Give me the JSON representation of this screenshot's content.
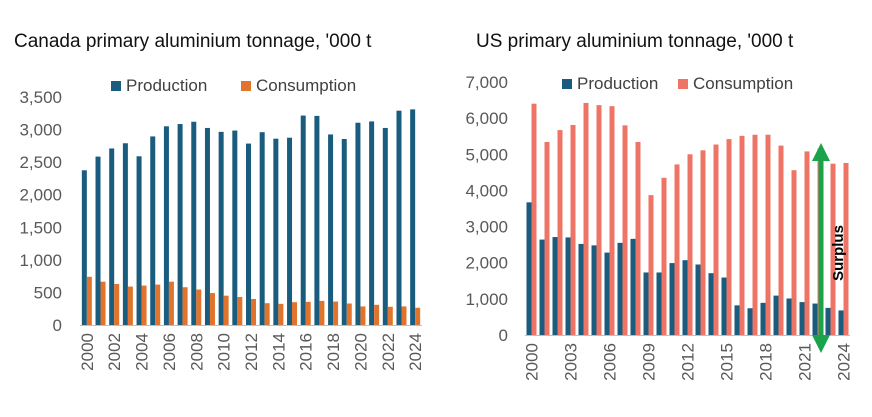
{
  "colors": {
    "production": "#1a5c7e",
    "consumption_canada": "#e0742d",
    "consumption_us": "#ee7466",
    "axis": "#bfbfbf",
    "surplus_arrow": "#1aa34a"
  },
  "chart_data": [
    {
      "type": "bar",
      "title": "Canada primary aluminium tonnage, '000 t",
      "categories": [
        "2000",
        "2001",
        "2002",
        "2003",
        "2004",
        "2005",
        "2006",
        "2007",
        "2008",
        "2009",
        "2010",
        "2011",
        "2012",
        "2013",
        "2014",
        "2015",
        "2016",
        "2017",
        "2018",
        "2019",
        "2020",
        "2021",
        "2022",
        "2023",
        "2024"
      ],
      "tick_labels": [
        "2000",
        "2002",
        "2004",
        "2006",
        "2008",
        "2010",
        "2012",
        "2014",
        "2016",
        "2018",
        "2020",
        "2022",
        "2024"
      ],
      "series": [
        {
          "name": "Production",
          "values": [
            2375,
            2585,
            2710,
            2790,
            2590,
            2895,
            3050,
            3085,
            3120,
            3025,
            2965,
            2985,
            2785,
            2960,
            2860,
            2875,
            3215,
            3210,
            2925,
            2855,
            3105,
            3125,
            3025,
            3290,
            3310
          ]
        },
        {
          "name": "Consumption",
          "values": [
            740,
            665,
            630,
            590,
            605,
            620,
            665,
            580,
            545,
            490,
            450,
            430,
            400,
            335,
            325,
            350,
            355,
            370,
            360,
            330,
            285,
            310,
            280,
            285,
            265
          ]
        }
      ],
      "ylim": [
        0,
        3500
      ],
      "y_ticks": [
        "0",
        "500",
        "1,000",
        "1,500",
        "2,000",
        "2,500",
        "3,000",
        "3,500"
      ],
      "legend_position": "top"
    },
    {
      "type": "bar",
      "title": "US primary aluminium tonnage, '000 t",
      "categories": [
        "2000",
        "2001",
        "2002",
        "2003",
        "2004",
        "2005",
        "2006",
        "2007",
        "2008",
        "2009",
        "2010",
        "2011",
        "2012",
        "2013",
        "2014",
        "2015",
        "2016",
        "2017",
        "2018",
        "2019",
        "2020",
        "2021",
        "2022",
        "2023",
        "2024"
      ],
      "tick_labels": [
        "2000",
        "2003",
        "2006",
        "2009",
        "2012",
        "2015",
        "2018",
        "2021",
        "2024"
      ],
      "series": [
        {
          "name": "Production",
          "values": [
            3670,
            2640,
            2710,
            2700,
            2520,
            2480,
            2280,
            2550,
            2660,
            1730,
            1730,
            1990,
            2070,
            1950,
            1710,
            1590,
            820,
            740,
            890,
            1090,
            1010,
            910,
            870,
            750,
            680
          ]
        },
        {
          "name": "Consumption",
          "values": [
            6400,
            5340,
            5670,
            5810,
            6420,
            6360,
            6330,
            5800,
            5340,
            3870,
            4350,
            4720,
            5000,
            5110,
            5270,
            5420,
            5510,
            5540,
            5540,
            5240,
            4560,
            5080,
            5160,
            4740,
            4760
          ]
        }
      ],
      "ylim": [
        0,
        7000
      ],
      "y_ticks": [
        "0",
        "1,000",
        "2,000",
        "3,000",
        "4,000",
        "5,000",
        "6,000",
        "7,000"
      ],
      "legend_position": "top",
      "annotation": "Surplus"
    }
  ]
}
